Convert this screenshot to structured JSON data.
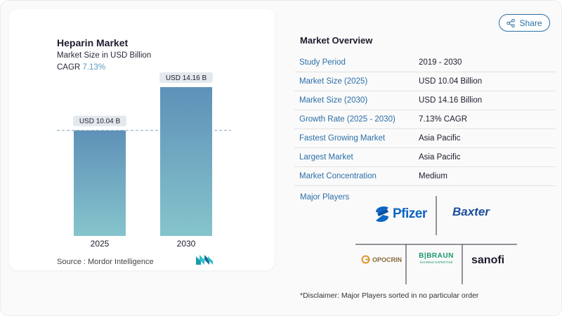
{
  "chart_data": {
    "type": "bar",
    "title": "Heparin Market",
    "subtitle": "Market Size in USD Billion",
    "cagr_label": "CAGR",
    "cagr_value": "7.13%",
    "categories": [
      "2025",
      "2030"
    ],
    "values": [
      10.04,
      14.16
    ],
    "data_labels": [
      "USD 10.04 B",
      "USD 14.16 B"
    ],
    "ylim": [
      0,
      15.5
    ],
    "reference_line_value": 10.04,
    "bar_color_top": "#5f91b8",
    "bar_color_bottom": "#85c4cc"
  },
  "source": "Source :  Mordor Intelligence",
  "share": {
    "label": "Share",
    "icon": "share-icon"
  },
  "overview": {
    "title": "Market Overview",
    "rows": [
      {
        "label": "Study Period",
        "value": "2019 - 2030"
      },
      {
        "label": "Market Size (2025)",
        "value": "USD 10.04 Billion"
      },
      {
        "label": "Market Size (2030)",
        "value": "USD 14.16 Billion"
      },
      {
        "label": "Growth Rate (2025 - 2030)",
        "value": "7.13% CAGR"
      },
      {
        "label": "Fastest Growing Market",
        "value": "Asia Pacific"
      },
      {
        "label": "Largest Market",
        "value": "Asia Pacific"
      },
      {
        "label": "Market Concentration",
        "value": "Medium"
      }
    ]
  },
  "players": {
    "label": "Major Players",
    "logos": [
      "Pfizer",
      "Baxter",
      "OPOCRIN",
      "B|BRAUN",
      "SHARING EXPERTISE",
      "sanofi"
    ]
  },
  "disclaimer": "*Disclaimer: Major Players sorted in no particular order",
  "colors": {
    "accent": "#2b6ea8",
    "label_bg": "#e4e9ee"
  }
}
